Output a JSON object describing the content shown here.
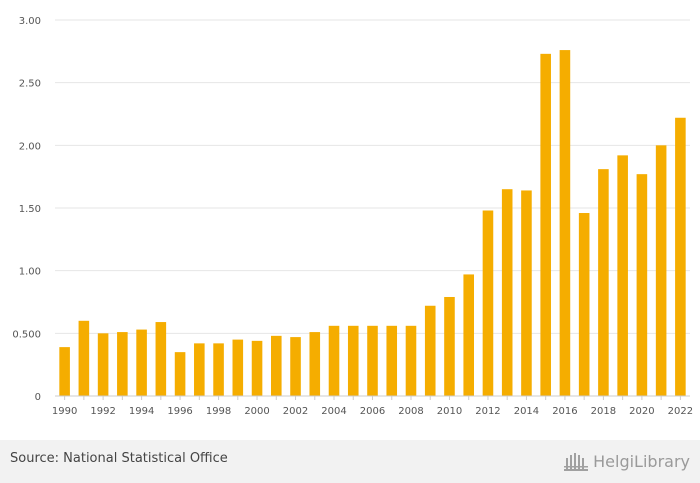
{
  "chart_data": {
    "type": "bar",
    "categories": [
      "1990",
      "1991",
      "1992",
      "1993",
      "1994",
      "1995",
      "1996",
      "1997",
      "1998",
      "1999",
      "2000",
      "2001",
      "2002",
      "2003",
      "2004",
      "2005",
      "2006",
      "2007",
      "2008",
      "2009",
      "2010",
      "2011",
      "2012",
      "2013",
      "2014",
      "2015",
      "2016",
      "2017",
      "2018",
      "2019",
      "2020",
      "2021",
      "2022"
    ],
    "values": [
      0.39,
      0.6,
      0.5,
      0.51,
      0.53,
      0.59,
      0.35,
      0.42,
      0.42,
      0.45,
      0.44,
      0.48,
      0.47,
      0.51,
      0.56,
      0.56,
      0.56,
      0.56,
      0.56,
      0.72,
      0.79,
      0.97,
      1.48,
      1.65,
      1.64,
      2.73,
      2.76,
      1.46,
      1.81,
      1.92,
      1.77,
      2.0,
      2.22
    ],
    "ylim": [
      0,
      3.0
    ],
    "yticks": [
      0,
      0.5,
      1.0,
      1.5,
      2.0,
      2.5,
      3.0
    ],
    "ytick_labels": [
      "0",
      "0.500",
      "1.00",
      "1.50",
      "2.00",
      "2.50",
      "3.00"
    ],
    "xtick_labels": [
      "1990",
      "1992",
      "1994",
      "1996",
      "1998",
      "2000",
      "2002",
      "2004",
      "2006",
      "2008",
      "2010",
      "2012",
      "2014",
      "2016",
      "2018",
      "2020",
      "2022"
    ],
    "grid": true,
    "bar_color": "#f5ad00"
  },
  "footer": {
    "source": "Source: National Statistical Office",
    "brand": "HelgiLibrary",
    "brand_icon": "library-building-icon"
  }
}
